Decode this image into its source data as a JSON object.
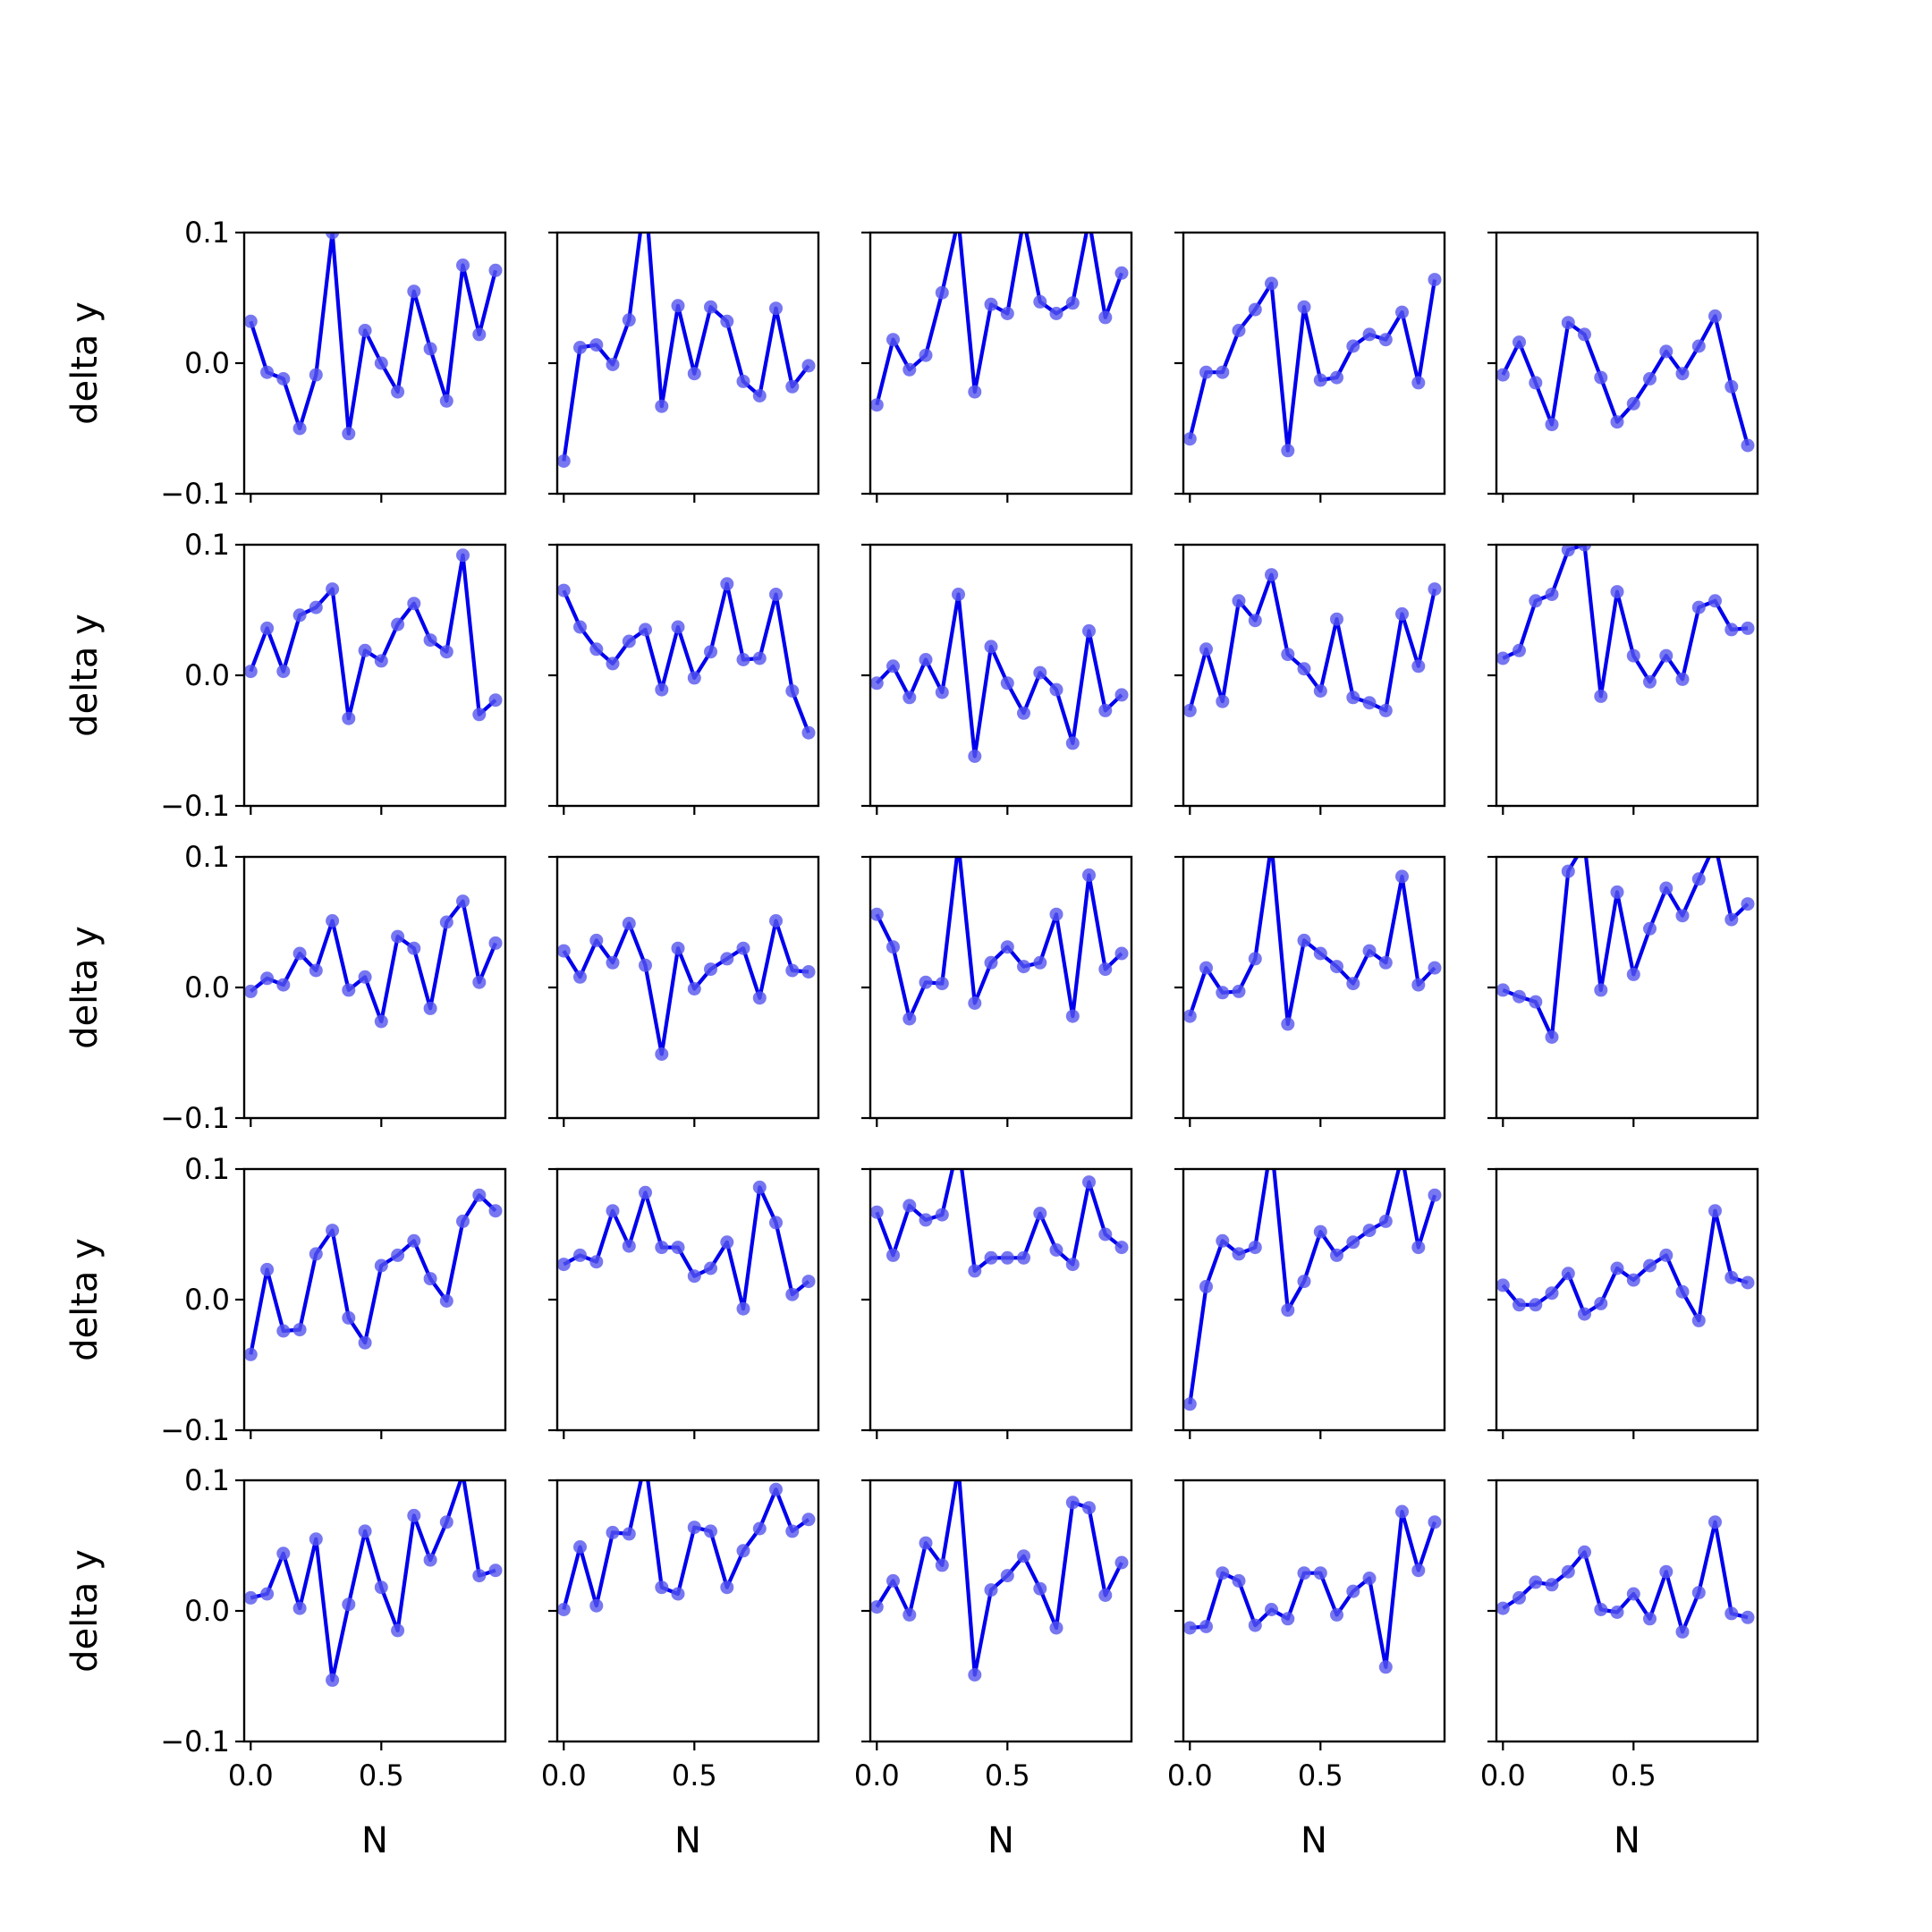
{
  "chart_data": {
    "type": "line",
    "layout": "5x5 grid of subplots",
    "xlabel": "N",
    "ylabel": "delta y",
    "xlim": [
      -0.025,
      0.975
    ],
    "ylim": [
      -0.1,
      0.1
    ],
    "x_ticks": [
      0.0,
      0.5
    ],
    "x_tick_labels": [
      "0.0",
      "0.5"
    ],
    "y_ticks": [
      -0.1,
      0.0,
      0.1
    ],
    "y_tick_labels": [
      "−0.1",
      "0.0",
      "0.1"
    ],
    "line_color": "#0000ee",
    "marker_color": "#5555ee",
    "x": [
      0.0,
      0.0625,
      0.125,
      0.1875,
      0.25,
      0.3125,
      0.375,
      0.4375,
      0.5,
      0.5625,
      0.625,
      0.6875,
      0.75,
      0.8125,
      0.875,
      0.9375
    ],
    "panels": [
      [
        0.032,
        -0.007,
        -0.012,
        -0.05,
        -0.009,
        0.1,
        -0.054,
        0.025,
        0.0,
        -0.022,
        0.055,
        0.011,
        -0.029,
        0.075,
        0.022,
        0.071
      ],
      [
        -0.075,
        0.012,
        0.014,
        -0.001,
        0.033,
        0.13,
        -0.033,
        0.044,
        -0.008,
        0.043,
        0.032,
        -0.014,
        -0.025,
        0.042,
        -0.018,
        -0.002
      ],
      [
        -0.032,
        0.018,
        -0.005,
        0.006,
        0.054,
        0.11,
        -0.022,
        0.045,
        0.038,
        0.11,
        0.047,
        0.038,
        0.046,
        0.11,
        0.035,
        0.069
      ],
      [
        -0.058,
        -0.007,
        -0.007,
        0.025,
        0.041,
        0.061,
        -0.067,
        0.043,
        -0.013,
        -0.011,
        0.013,
        0.022,
        0.018,
        0.039,
        -0.015,
        0.064
      ],
      [
        -0.009,
        0.016,
        -0.015,
        -0.047,
        0.031,
        0.022,
        -0.011,
        -0.045,
        -0.031,
        -0.012,
        0.009,
        -0.008,
        0.013,
        0.036,
        -0.018,
        -0.063
      ],
      [
        0.003,
        0.036,
        0.003,
        0.046,
        0.052,
        0.066,
        -0.033,
        0.019,
        0.011,
        0.039,
        0.055,
        0.027,
        0.018,
        0.092,
        -0.03,
        -0.019
      ],
      [
        0.065,
        0.037,
        0.02,
        0.009,
        0.026,
        0.035,
        -0.011,
        0.037,
        -0.002,
        0.018,
        0.07,
        0.012,
        0.013,
        0.062,
        -0.012,
        -0.044
      ],
      [
        -0.006,
        0.007,
        -0.017,
        0.012,
        -0.013,
        0.062,
        -0.062,
        0.022,
        -0.006,
        -0.029,
        0.002,
        -0.011,
        -0.052,
        0.034,
        -0.027,
        -0.015
      ],
      [
        -0.027,
        0.02,
        -0.02,
        0.057,
        0.042,
        0.077,
        0.016,
        0.005,
        -0.012,
        0.043,
        -0.017,
        -0.021,
        -0.027,
        0.047,
        0.007,
        0.066
      ],
      [
        0.013,
        0.019,
        0.057,
        0.062,
        0.096,
        0.1,
        -0.016,
        0.064,
        0.015,
        -0.005,
        0.015,
        -0.003,
        0.052,
        0.057,
        0.035,
        0.036
      ],
      [
        -0.003,
        0.007,
        0.002,
        0.026,
        0.013,
        0.051,
        -0.002,
        0.008,
        -0.026,
        0.039,
        0.03,
        -0.016,
        0.05,
        0.066,
        0.004,
        0.034
      ],
      [
        0.028,
        0.008,
        0.036,
        0.019,
        0.049,
        0.017,
        -0.051,
        0.03,
        -0.001,
        0.014,
        0.022,
        0.03,
        -0.008,
        0.051,
        0.013,
        0.012
      ],
      [
        0.056,
        0.031,
        -0.024,
        0.004,
        0.003,
        0.11,
        -0.012,
        0.019,
        0.031,
        0.016,
        0.019,
        0.056,
        -0.022,
        0.086,
        0.014,
        0.026
      ],
      [
        -0.022,
        0.015,
        -0.004,
        -0.003,
        0.022,
        0.11,
        -0.028,
        0.036,
        0.026,
        0.016,
        0.003,
        0.028,
        0.019,
        0.085,
        0.002,
        0.015
      ],
      [
        -0.002,
        -0.007,
        -0.011,
        -0.038,
        0.089,
        0.11,
        -0.002,
        0.073,
        0.01,
        0.045,
        0.076,
        0.055,
        0.083,
        0.11,
        0.052,
        0.064
      ],
      [
        -0.042,
        0.023,
        -0.024,
        -0.023,
        0.035,
        0.053,
        -0.014,
        -0.033,
        0.026,
        0.034,
        0.045,
        0.016,
        -0.001,
        0.06,
        0.08,
        0.068
      ],
      [
        0.027,
        0.034,
        0.029,
        0.068,
        0.041,
        0.082,
        0.04,
        0.04,
        0.018,
        0.024,
        0.044,
        -0.007,
        0.086,
        0.059,
        0.004,
        0.014
      ],
      [
        0.067,
        0.034,
        0.072,
        0.061,
        0.065,
        0.12,
        0.022,
        0.032,
        0.032,
        0.032,
        0.066,
        0.038,
        0.027,
        0.09,
        0.05,
        0.04
      ],
      [
        -0.08,
        0.01,
        0.045,
        0.035,
        0.04,
        0.12,
        -0.008,
        0.014,
        0.052,
        0.034,
        0.044,
        0.053,
        0.06,
        0.11,
        0.04,
        0.08
      ],
      [
        0.011,
        -0.004,
        -0.004,
        0.005,
        0.02,
        -0.011,
        -0.003,
        0.024,
        0.015,
        0.026,
        0.034,
        0.006,
        -0.016,
        0.068,
        0.017,
        0.013
      ],
      [
        0.01,
        0.013,
        0.044,
        0.002,
        0.055,
        -0.053,
        0.005,
        0.061,
        0.018,
        -0.015,
        0.073,
        0.039,
        0.068,
        0.105,
        0.027,
        0.031
      ],
      [
        0.001,
        0.049,
        0.004,
        0.06,
        0.059,
        0.115,
        0.018,
        0.013,
        0.064,
        0.061,
        0.018,
        0.046,
        0.063,
        0.093,
        0.061,
        0.07
      ],
      [
        0.003,
        0.023,
        -0.003,
        0.052,
        0.035,
        0.11,
        -0.049,
        0.016,
        0.027,
        0.042,
        0.017,
        -0.013,
        0.083,
        0.079,
        0.012,
        0.037
      ],
      [
        -0.013,
        -0.012,
        0.029,
        0.023,
        -0.011,
        0.001,
        -0.006,
        0.029,
        0.029,
        -0.003,
        0.015,
        0.025,
        -0.043,
        0.076,
        0.031,
        0.068
      ],
      [
        0.002,
        0.01,
        0.022,
        0.02,
        0.03,
        0.045,
        0.001,
        -0.001,
        0.013,
        -0.006,
        0.03,
        -0.016,
        0.014,
        0.068,
        -0.002,
        -0.005
      ]
    ]
  }
}
